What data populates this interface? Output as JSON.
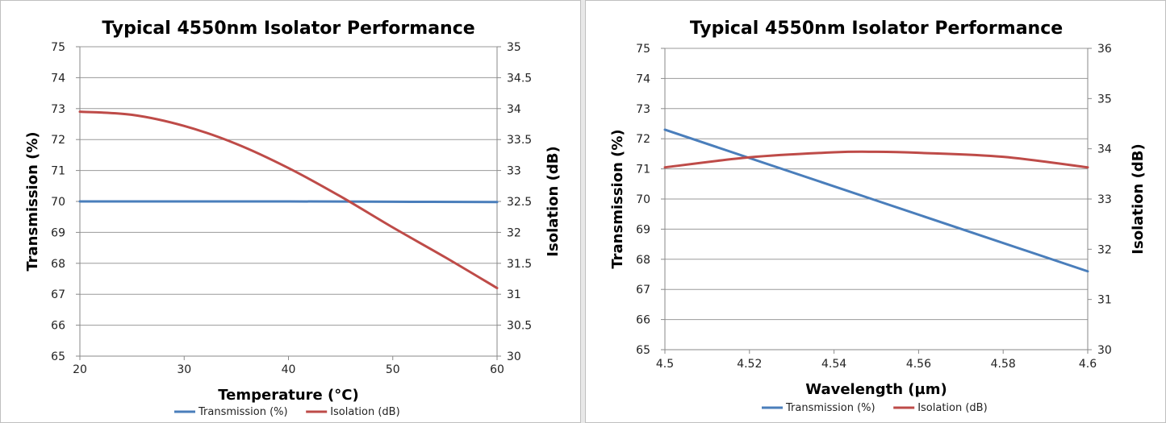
{
  "chart_data": [
    {
      "type": "line",
      "title": "Typical 4550nm Isolator Performance",
      "xlabel": "Temperature (°C)",
      "ylabel": "Transmission (%)",
      "y2label": "Isolation (dB)",
      "xlim": [
        20,
        60
      ],
      "ylim": [
        65,
        75
      ],
      "y2lim": [
        30,
        35
      ],
      "xticks": [
        "20",
        "30",
        "40",
        "50",
        "60"
      ],
      "yticks": [
        "65",
        "66",
        "67",
        "68",
        "69",
        "70",
        "71",
        "72",
        "73",
        "74",
        "75"
      ],
      "y2ticks": [
        "30",
        "30.5",
        "31",
        "31.5",
        "32",
        "32.5",
        "33",
        "33.5",
        "34",
        "34.5",
        "35"
      ],
      "grid": true,
      "legend": "bottom",
      "series": [
        {
          "name": "Transmission (%)",
          "axis": "left",
          "color": "#4a7ebb",
          "x": [
            20,
            30,
            40,
            50,
            60
          ],
          "values": [
            70.0,
            70.0,
            70.0,
            69.99,
            69.98
          ]
        },
        {
          "name": "Isolation (dB)",
          "axis": "right",
          "color": "#be4b48",
          "x": [
            20,
            25,
            30,
            35,
            40,
            45,
            50,
            55,
            60
          ],
          "values": [
            33.95,
            33.9,
            33.72,
            33.43,
            33.04,
            32.58,
            32.08,
            31.6,
            31.1
          ]
        }
      ]
    },
    {
      "type": "line",
      "title": "Typical 4550nm Isolator Performance",
      "xlabel": "Wavelength (µm)",
      "ylabel": "Transmission (%)",
      "y2label": "Isolation (dB)",
      "xlim": [
        4.5,
        4.6
      ],
      "ylim": [
        65,
        75
      ],
      "y2lim": [
        30,
        36
      ],
      "xticks": [
        "4.5",
        "4.52",
        "4.54",
        "4.56",
        "4.58",
        "4.6"
      ],
      "yticks": [
        "65",
        "66",
        "67",
        "68",
        "69",
        "70",
        "71",
        "72",
        "73",
        "74",
        "75"
      ],
      "y2ticks": [
        "30",
        "31",
        "32",
        "33",
        "34",
        "35",
        "36"
      ],
      "grid": true,
      "legend": "bottom",
      "series": [
        {
          "name": "Transmission (%)",
          "axis": "left",
          "color": "#4a7ebb",
          "x": [
            4.5,
            4.6
          ],
          "values": [
            72.3,
            67.6
          ]
        },
        {
          "name": "Isolation (dB)",
          "axis": "right",
          "color": "#be4b48",
          "x": [
            4.5,
            4.52,
            4.54,
            4.55,
            4.56,
            4.58,
            4.6
          ],
          "values": [
            33.63,
            33.83,
            33.93,
            33.94,
            33.92,
            33.84,
            33.63
          ]
        }
      ]
    }
  ]
}
